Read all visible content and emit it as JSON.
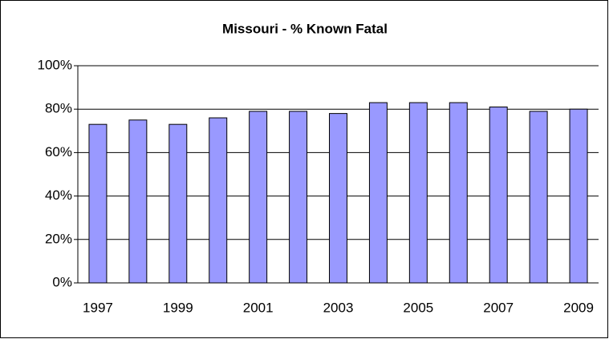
{
  "chart_data": {
    "type": "bar",
    "title": "Missouri - % Known Fatal",
    "categories": [
      "1997",
      null,
      "1999",
      null,
      "2001",
      null,
      "2003",
      null,
      "2005",
      null,
      "2007",
      null,
      "2009"
    ],
    "values": [
      73,
      75,
      73,
      76,
      79,
      79,
      78,
      83,
      83,
      83,
      81,
      79,
      80
    ],
    "color": "#9999ff",
    "ylim": [
      0,
      100
    ],
    "yticks": [
      {
        "value": 0,
        "label": "0%"
      },
      {
        "value": 20,
        "label": "20%"
      },
      {
        "value": 40,
        "label": "40%"
      },
      {
        "value": 60,
        "label": "60%"
      },
      {
        "value": 80,
        "label": "80%"
      },
      {
        "value": 100,
        "label": "100%"
      }
    ],
    "grid": true
  }
}
